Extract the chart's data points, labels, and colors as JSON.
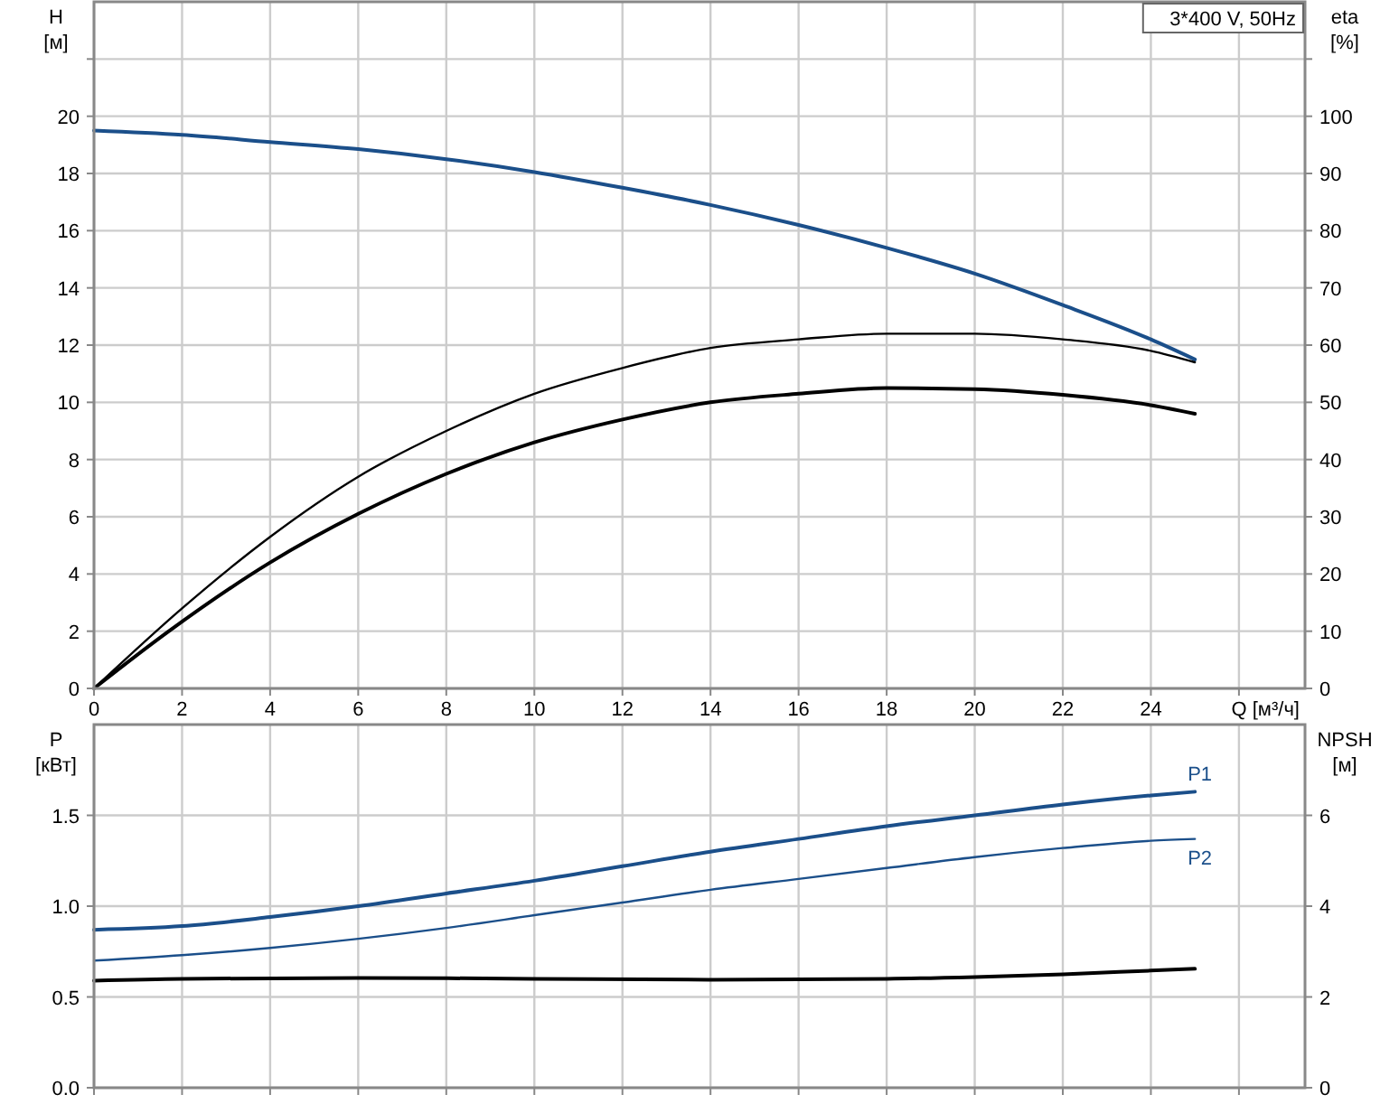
{
  "chart_data": [
    {
      "type": "line",
      "ylabel": "H [м]",
      "y2label": "eta [%]",
      "xlabel": "Q [м³/ч]",
      "annotations": [
        "3*400 V, 50Hz"
      ],
      "xlim": [
        0,
        27.5
      ],
      "xticks": [
        0,
        2,
        4,
        6,
        8,
        10,
        12,
        14,
        16,
        18,
        20,
        22,
        24,
        {
          "value": 26,
          "label": null
        }
      ],
      "ylim": [
        0,
        24
      ],
      "yticks": [
        0,
        2,
        4,
        6,
        8,
        10,
        12,
        14,
        16,
        18,
        20,
        {
          "value": 22,
          "label": null
        }
      ],
      "y2lim": [
        0,
        120
      ],
      "y2ticks": [
        0,
        10,
        20,
        30,
        40,
        50,
        60,
        70,
        80,
        90,
        100,
        {
          "value": 110,
          "label": null
        }
      ],
      "grid": true,
      "series": [
        {
          "color": "#1b4f8a",
          "x": [
            0,
            2,
            4,
            6,
            8,
            10,
            12,
            14,
            16,
            18,
            20,
            22,
            24,
            25
          ],
          "values": [
            19.5,
            19.35,
            19.1,
            18.85,
            18.5,
            18.05,
            17.5,
            16.9,
            16.2,
            15.4,
            14.5,
            13.4,
            12.2,
            11.5
          ]
        },
        {
          "color": "#000000",
          "axis": "y2",
          "x": [
            0,
            2,
            4,
            6,
            8,
            10,
            12,
            14,
            16,
            18,
            20,
            22,
            24,
            25
          ],
          "values": [
            0,
            14,
            26.5,
            37,
            45,
            51.5,
            56,
            59.5,
            61,
            62,
            62,
            61,
            59,
            57
          ]
        },
        {
          "color": "#000000",
          "axis": "y2",
          "x": [
            0,
            1.7,
            4,
            6,
            8,
            10,
            12,
            14,
            16,
            18,
            20,
            22,
            24,
            25
          ],
          "values": [
            0,
            10,
            22,
            30.5,
            37.5,
            43,
            47,
            50,
            51.5,
            52.5,
            52.3,
            51.3,
            49.5,
            48
          ]
        }
      ]
    },
    {
      "type": "line",
      "ylabel": "P [кВт]",
      "y2label": "NPSH [м]",
      "xlim": [
        0,
        27.5
      ],
      "xticks": [
        0,
        2,
        4,
        6,
        8,
        10,
        12,
        14,
        16,
        18,
        20,
        22,
        24,
        26
      ],
      "tick_labels": "y",
      "ylim": [
        0,
        2
      ],
      "yticks": [
        {
          "value": 0,
          "label": "0.0"
        },
        {
          "value": 0.5,
          "label": "0.5"
        },
        {
          "value": 1,
          "label": "1.0"
        },
        {
          "value": 1.5,
          "label": "1.5"
        }
      ],
      "y2lim": [
        0,
        8
      ],
      "y2ticks": [
        0,
        2,
        4,
        6
      ],
      "grid": true,
      "series": [
        {
          "name": "P1",
          "color": "#1b4f8a",
          "x": [
            0,
            2,
            4,
            6,
            8,
            10,
            12,
            14,
            16,
            18,
            20,
            22,
            24,
            25
          ],
          "values": [
            0.87,
            0.89,
            0.94,
            1.0,
            1.07,
            1.14,
            1.22,
            1.3,
            1.37,
            1.44,
            1.5,
            1.56,
            1.61,
            1.63
          ]
        },
        {
          "name": "P2",
          "color": "#1b4f8a",
          "x": [
            0,
            2,
            4,
            6,
            8,
            10,
            12,
            14,
            16,
            18,
            20,
            22,
            24,
            25
          ],
          "values": [
            0.7,
            0.73,
            0.77,
            0.82,
            0.88,
            0.95,
            1.02,
            1.09,
            1.15,
            1.21,
            1.27,
            1.32,
            1.36,
            1.37
          ]
        },
        {
          "color": "#000000",
          "axis": "y2",
          "x": [
            0,
            2,
            6,
            10,
            14,
            18,
            20,
            22,
            24,
            25
          ],
          "values": [
            2.36,
            2.4,
            2.42,
            2.4,
            2.38,
            2.4,
            2.44,
            2.5,
            2.58,
            2.62
          ]
        }
      ]
    }
  ]
}
